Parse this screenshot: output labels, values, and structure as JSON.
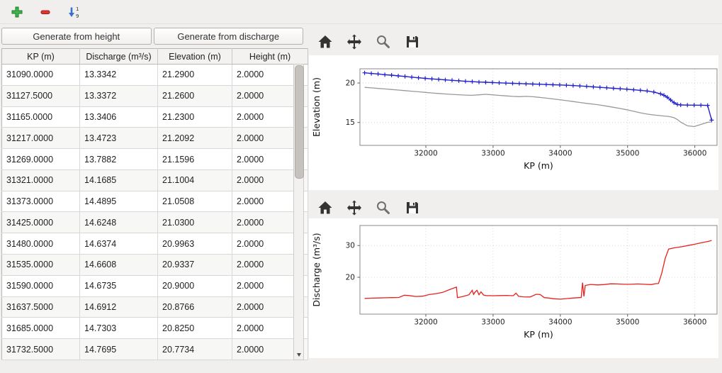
{
  "top_toolbar": {
    "icons": [
      "add-icon",
      "remove-icon",
      "sort-ascending-icon"
    ],
    "colors": {
      "add": "#3cb44a",
      "remove": "#e0352b",
      "sort": "#3a6fd0"
    }
  },
  "left_panel": {
    "buttons": {
      "generate_height": "Generate from height",
      "generate_discharge": "Generate from discharge"
    },
    "table": {
      "columns": [
        "KP (m)",
        "Discharge (m³/s)",
        "Elevation (m)",
        "Height (m)"
      ],
      "rows": [
        [
          "31090.0000",
          "13.3342",
          "21.2900",
          "2.0000"
        ],
        [
          "31127.5000",
          "13.3372",
          "21.2600",
          "2.0000"
        ],
        [
          "31165.0000",
          "13.3406",
          "21.2300",
          "2.0000"
        ],
        [
          "31217.0000",
          "13.4723",
          "21.2092",
          "2.0000"
        ],
        [
          "31269.0000",
          "13.7882",
          "21.1596",
          "2.0000"
        ],
        [
          "31321.0000",
          "14.1685",
          "21.1004",
          "2.0000"
        ],
        [
          "31373.0000",
          "14.4895",
          "21.0508",
          "2.0000"
        ],
        [
          "31425.0000",
          "14.6248",
          "21.0300",
          "2.0000"
        ],
        [
          "31480.0000",
          "14.6374",
          "20.9963",
          "2.0000"
        ],
        [
          "31535.0000",
          "14.6608",
          "20.9337",
          "2.0000"
        ],
        [
          "31590.0000",
          "14.6735",
          "20.9000",
          "2.0000"
        ],
        [
          "31637.5000",
          "14.6912",
          "20.8766",
          "2.0000"
        ],
        [
          "31685.0000",
          "14.7303",
          "20.8250",
          "2.0000"
        ],
        [
          "31732.5000",
          "14.7695",
          "20.7734",
          "2.0000"
        ]
      ]
    }
  },
  "mpl_toolbar": {
    "icons": [
      "home-icon",
      "pan-icon",
      "zoom-icon",
      "save-icon"
    ]
  },
  "chart_data": [
    {
      "type": "line",
      "title": "",
      "xlabel": "KP (m)",
      "ylabel": "Elevation (m)",
      "xlim": [
        31020,
        36330
      ],
      "ylim": [
        12.1,
        21.8
      ],
      "xticks": [
        32000,
        33000,
        34000,
        35000,
        36000
      ],
      "yticks": [
        15,
        20
      ],
      "grid": true,
      "legend": "none",
      "series": [
        {
          "name": "water-surface-elevation",
          "color": "#2222cc",
          "marker": "+",
          "x": [
            31090,
            31190,
            31290,
            31390,
            31490,
            31590,
            31690,
            31790,
            31890,
            31990,
            32090,
            32190,
            32290,
            32390,
            32490,
            32590,
            32690,
            32790,
            32890,
            32990,
            33090,
            33190,
            33290,
            33390,
            33490,
            33590,
            33690,
            33790,
            33890,
            33990,
            34090,
            34190,
            34290,
            34390,
            34490,
            34590,
            34690,
            34790,
            34890,
            34990,
            35090,
            35190,
            35290,
            35390,
            35490,
            35540,
            35590,
            35640,
            35690,
            35740,
            35790,
            35890,
            35990,
            36090,
            36190,
            36250
          ],
          "y": [
            21.29,
            21.21,
            21.14,
            21.05,
            20.99,
            20.9,
            20.83,
            20.74,
            20.66,
            20.59,
            20.52,
            20.46,
            20.4,
            20.34,
            20.28,
            20.22,
            20.17,
            20.12,
            20.09,
            20.06,
            20.02,
            19.99,
            19.96,
            19.93,
            19.9,
            19.87,
            19.84,
            19.81,
            19.78,
            19.75,
            19.72,
            19.68,
            19.63,
            19.57,
            19.51,
            19.45,
            19.39,
            19.33,
            19.27,
            19.21,
            19.14,
            19.07,
            18.99,
            18.85,
            18.62,
            18.45,
            18.2,
            17.85,
            17.5,
            17.28,
            17.22,
            17.2,
            17.19,
            17.18,
            17.17,
            15.3
          ]
        },
        {
          "name": "bed-elevation",
          "color": "#999999",
          "marker": null,
          "x": [
            31090,
            31190,
            31290,
            31390,
            31490,
            31590,
            31690,
            31790,
            31890,
            31990,
            32090,
            32190,
            32290,
            32390,
            32490,
            32590,
            32690,
            32790,
            32890,
            32990,
            33090,
            33190,
            33290,
            33390,
            33490,
            33590,
            33690,
            33790,
            33890,
            33990,
            34090,
            34190,
            34290,
            34390,
            34490,
            34590,
            34690,
            34790,
            34890,
            34990,
            35090,
            35190,
            35290,
            35390,
            35490,
            35540,
            35590,
            35640,
            35690,
            35740,
            35790,
            35890,
            35990,
            36090,
            36190,
            36250
          ],
          "y": [
            19.45,
            19.38,
            19.31,
            19.25,
            19.18,
            19.11,
            19.03,
            18.96,
            18.89,
            18.81,
            18.74,
            18.67,
            18.61,
            18.56,
            18.51,
            18.47,
            18.44,
            18.5,
            18.57,
            18.5,
            18.43,
            18.37,
            18.31,
            18.27,
            18.31,
            18.26,
            18.18,
            18.08,
            17.98,
            17.88,
            17.77,
            17.65,
            17.53,
            17.42,
            17.32,
            17.21,
            17.07,
            16.92,
            16.77,
            16.61,
            16.42,
            16.22,
            16.06,
            15.95,
            15.86,
            15.82,
            15.78,
            15.72,
            15.6,
            15.38,
            15.05,
            14.58,
            14.48,
            14.75,
            15.02,
            15.08
          ]
        }
      ]
    },
    {
      "type": "line",
      "title": "",
      "xlabel": "KP (m)",
      "ylabel": "Discharge (m³/s)",
      "xlim": [
        31020,
        36330
      ],
      "ylim": [
        8.4,
        36.3
      ],
      "xticks": [
        32000,
        33000,
        34000,
        35000,
        36000
      ],
      "yticks": [
        20,
        30
      ],
      "grid": true,
      "legend": "none",
      "series": [
        {
          "name": "discharge",
          "color": "#e8211d",
          "marker": null,
          "x": [
            31090,
            31200,
            31300,
            31400,
            31500,
            31600,
            31680,
            31750,
            31850,
            31950,
            32050,
            32150,
            32250,
            32350,
            32440,
            32455,
            32470,
            32550,
            32640,
            32690,
            32710,
            32730,
            32760,
            32790,
            32820,
            32860,
            32900,
            33000,
            33100,
            33200,
            33300,
            33340,
            33380,
            33450,
            33550,
            33640,
            33700,
            33760,
            33820,
            33900,
            34000,
            34100,
            34200,
            34280,
            34310,
            34330,
            34350,
            34370,
            34450,
            34550,
            34650,
            34750,
            34850,
            34950,
            35050,
            35150,
            35250,
            35350,
            35420,
            35460,
            35510,
            35560,
            35610,
            35700,
            35800,
            35900,
            36000,
            36100,
            36200,
            36250
          ],
          "y": [
            13.35,
            13.45,
            13.5,
            13.55,
            13.6,
            13.65,
            14.35,
            14.25,
            13.95,
            14.05,
            14.55,
            14.85,
            15.25,
            16.1,
            16.8,
            16.9,
            13.6,
            13.95,
            14.5,
            15.9,
            14.6,
            15.3,
            15.9,
            14.5,
            15.4,
            14.4,
            14.25,
            14.2,
            14.25,
            14.3,
            14.2,
            15.0,
            14.0,
            13.85,
            13.8,
            14.65,
            14.55,
            13.6,
            13.5,
            13.25,
            13.1,
            13.3,
            13.5,
            13.6,
            13.65,
            18.3,
            13.95,
            17.45,
            17.75,
            17.6,
            17.7,
            17.95,
            17.9,
            17.8,
            17.8,
            17.9,
            17.8,
            17.7,
            18.0,
            18.05,
            21.5,
            26.0,
            28.9,
            29.3,
            29.6,
            30.0,
            30.4,
            30.9,
            31.3,
            31.6
          ]
        }
      ]
    }
  ]
}
